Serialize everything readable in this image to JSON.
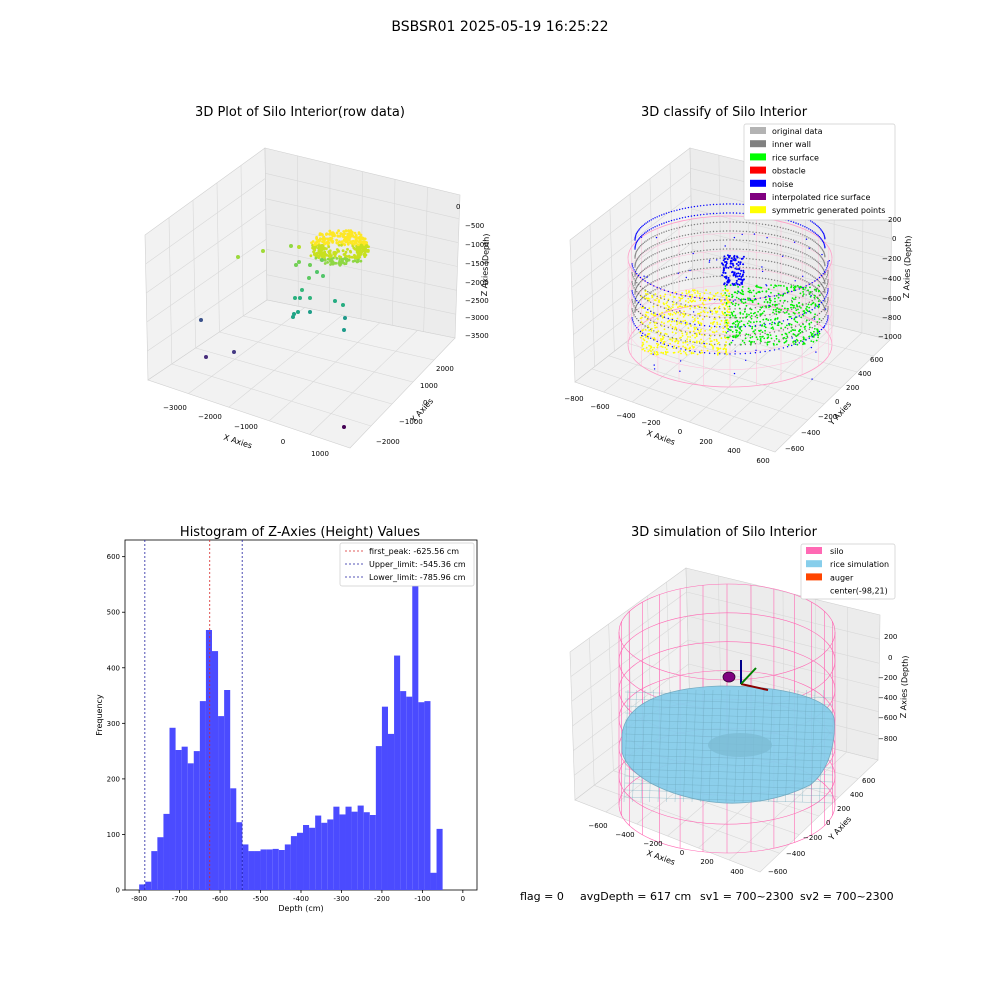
{
  "figure": {
    "suptitle": "BSBSR01 2025-05-19 16:25:22",
    "footer": {
      "flag": "flag = 0",
      "avg": "avgDepth = 617 cm",
      "sv1": "sv1 = 700~2300",
      "sv2": "sv2 = 700~2300"
    }
  },
  "chart_data": [
    {
      "type": "scatter3d",
      "title": "3D Plot of Silo Interior(row data)",
      "xlabel": "X Axies",
      "ylabel": "Y Axies",
      "zlabel": "Z Axies (Depth)",
      "xticks": [
        "−3000",
        "−2000",
        "−1000",
        "0",
        "1000"
      ],
      "yticks": [
        "−2000",
        "−1000",
        "0",
        "1000",
        "2000"
      ],
      "zticks": [
        "0",
        "−500",
        "−1000",
        "−1500",
        "−2000",
        "−2500",
        "−3000",
        "−3500"
      ],
      "colors": {
        "high": "#fde725",
        "mid": "#21a685",
        "low": "#440154"
      }
    },
    {
      "type": "scatter3d",
      "title": "3D classify of Silo Interior",
      "xlabel": "X Axies",
      "ylabel": "Y Axies",
      "zlabel": "Z Axies (Depth)",
      "xticks": [
        "−800",
        "−600",
        "−400",
        "−200",
        "0",
        "200",
        "400",
        "600"
      ],
      "yticks": [
        "−600",
        "−400",
        "−200",
        "0",
        "200",
        "400",
        "600"
      ],
      "zticks": [
        "200",
        "0",
        "−200",
        "−400",
        "−600",
        "−800",
        "−1000"
      ],
      "legend": [
        {
          "label": "original data",
          "color": "#b3b3b3"
        },
        {
          "label": "inner wall",
          "color": "#808080"
        },
        {
          "label": "rice surface",
          "color": "#00ff00"
        },
        {
          "label": "obstacle",
          "color": "#ff0000"
        },
        {
          "label": "noise",
          "color": "#0000ff"
        },
        {
          "label": "interpolated rice surface",
          "color": "#800080"
        },
        {
          "label": "symmetric generated points",
          "color": "#ffff00"
        }
      ]
    },
    {
      "type": "bar",
      "title": "Histogram of Z-Axies (Height) Values",
      "xlabel": "Depth (cm)",
      "ylabel": "Frequency",
      "xlim": [
        -835,
        35
      ],
      "ylim": [
        0,
        630
      ],
      "xticks": [
        -800,
        -700,
        -600,
        -500,
        -400,
        -300,
        -200,
        -100,
        0
      ],
      "yticks": [
        0,
        100,
        200,
        300,
        400,
        500,
        600
      ],
      "bar_color": "#4b4bff",
      "bin_edges_start": -800,
      "bin_width": 15,
      "values": [
        10,
        15,
        70,
        95,
        137,
        292,
        252,
        258,
        228,
        250,
        340,
        468,
        430,
        313,
        360,
        183,
        122,
        82,
        70,
        70,
        73,
        73,
        74,
        72,
        82,
        97,
        103,
        117,
        112,
        134,
        121,
        127,
        150,
        136,
        150,
        141,
        152,
        140,
        135,
        259,
        330,
        281,
        422,
        358,
        348,
        600,
        338,
        340,
        31,
        110
      ],
      "vlines": [
        {
          "label": "first_peak: -625.56 cm",
          "x": -625.56,
          "color": "#d62728"
        },
        {
          "label": "Upper_limit: -545.36 cm",
          "x": -545.36,
          "color": "#1f1fa0"
        },
        {
          "label": "Lower_limit: -785.96 cm",
          "x": -785.96,
          "color": "#1f1fa0"
        }
      ]
    },
    {
      "type": "surface3d",
      "title": "3D simulation of Silo Interior",
      "xlabel": "X Axies",
      "ylabel": "Y Axies",
      "zlabel": "Z Axies (Depth)",
      "xticks": [
        "−600",
        "−400",
        "−200",
        "0",
        "200",
        "400"
      ],
      "yticks": [
        "−600",
        "−400",
        "−200",
        "0",
        "200",
        "400",
        "600"
      ],
      "zticks": [
        "200",
        "0",
        "−200",
        "−400",
        "−600",
        "−800"
      ],
      "legend": [
        {
          "label": "silo",
          "color": "#ff69b4"
        },
        {
          "label": "rice simulation",
          "color": "#87ceeb"
        },
        {
          "label": "auger",
          "color": "#ff4500"
        },
        {
          "label": "center(-98,21)",
          "color": ""
        }
      ]
    }
  ]
}
